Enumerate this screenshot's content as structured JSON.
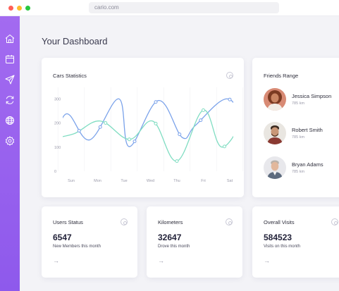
{
  "browser": {
    "url": "cario.com"
  },
  "sidebar": {
    "items": [
      {
        "icon": "home-icon"
      },
      {
        "icon": "calendar-icon"
      },
      {
        "icon": "send-icon"
      },
      {
        "icon": "sync-icon"
      },
      {
        "icon": "globe-icon"
      },
      {
        "icon": "settings-icon"
      }
    ]
  },
  "header": {
    "title": "Your Dashboard"
  },
  "cars_card": {
    "title": "Cars Statistics"
  },
  "chart_data": {
    "type": "line",
    "title": "Cars Statistics",
    "categories": [
      "Sun",
      "Mon",
      "Tue",
      "Wed",
      "Thu",
      "Fri",
      "Sat"
    ],
    "y_ticks": [
      0,
      100,
      200,
      300
    ],
    "ylim": [
      0,
      330
    ],
    "grid": true,
    "series": [
      {
        "color": "#7aa2ea",
        "x": [
          -0.8,
          -0.2,
          0.7,
          1.8,
          2.2,
          3.3,
          4.2,
          4.7,
          5.9,
          6.6
        ],
        "y": [
          50,
          237,
          130,
          300,
          102,
          293,
          140,
          190,
          300,
          188
        ]
      },
      {
        "color": "#80ddc2",
        "x": [
          -0.8,
          0.1,
          1.1,
          2.2,
          3.1,
          4.0,
          5.0,
          5.7,
          6.6
        ],
        "y": [
          135,
          155,
          208,
          132,
          207,
          42,
          253,
          100,
          230
        ]
      }
    ],
    "markers": [
      {
        "series": 0,
        "x": [
          0.3,
          1.1,
          2.4,
          3.2,
          4.1,
          4.9,
          6.0
        ]
      },
      {
        "series": 1,
        "x": [
          1.3,
          2.2,
          3.2,
          4.0,
          5.0,
          5.8
        ]
      }
    ]
  },
  "friends_card": {
    "title": "Friends Range",
    "friends": [
      {
        "name": "Jessica Simpson",
        "distance": "785 km"
      },
      {
        "name": "Robert Smith",
        "distance": "785 km"
      },
      {
        "name": "Bryan Adams",
        "distance": "785 km"
      }
    ]
  },
  "stats": [
    {
      "title": "Users Status",
      "value": "6547",
      "subtitle": "New Members this month",
      "arrow": "→"
    },
    {
      "title": "Kilometers",
      "value": "32647",
      "subtitle": "Drove this month",
      "arrow": "→"
    },
    {
      "title": "Overall Visits",
      "value": "584523",
      "subtitle": "Visits on this month",
      "arrow": "→"
    }
  ],
  "colors": {
    "sidebar": "#9b63ef",
    "series_blue": "#7aa2ea",
    "series_green": "#80ddc2"
  }
}
